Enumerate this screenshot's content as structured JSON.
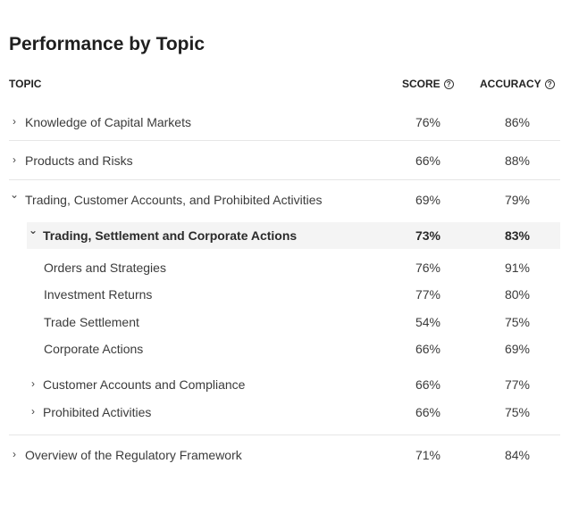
{
  "title": "Performance by Topic",
  "columns": {
    "topic": "TOPIC",
    "score": "SCORE",
    "accuracy": "ACCURACY",
    "help_glyph": "?"
  },
  "chevrons": {
    "collapsed": "›",
    "expanded": "⌄"
  },
  "rows": [
    {
      "label": "Knowledge of Capital Markets",
      "score": "76%",
      "accuracy": "86%"
    },
    {
      "label": "Products and Risks",
      "score": "66%",
      "accuracy": "88%"
    },
    {
      "label": "Trading, Customer Accounts, and Prohibited Activities",
      "score": "69%",
      "accuracy": "79%"
    },
    {
      "label": "Trading, Settlement and Corporate Actions",
      "score": "73%",
      "accuracy": "83%"
    },
    {
      "label": "Orders and Strategies",
      "score": "76%",
      "accuracy": "91%"
    },
    {
      "label": "Investment Returns",
      "score": "77%",
      "accuracy": "80%"
    },
    {
      "label": "Trade Settlement",
      "score": "54%",
      "accuracy": "75%"
    },
    {
      "label": "Corporate Actions",
      "score": "66%",
      "accuracy": "69%"
    },
    {
      "label": "Customer Accounts and Compliance",
      "score": "66%",
      "accuracy": "77%"
    },
    {
      "label": "Prohibited Activities",
      "score": "66%",
      "accuracy": "75%"
    },
    {
      "label": "Overview of the Regulatory Framework",
      "score": "71%",
      "accuracy": "84%"
    }
  ]
}
